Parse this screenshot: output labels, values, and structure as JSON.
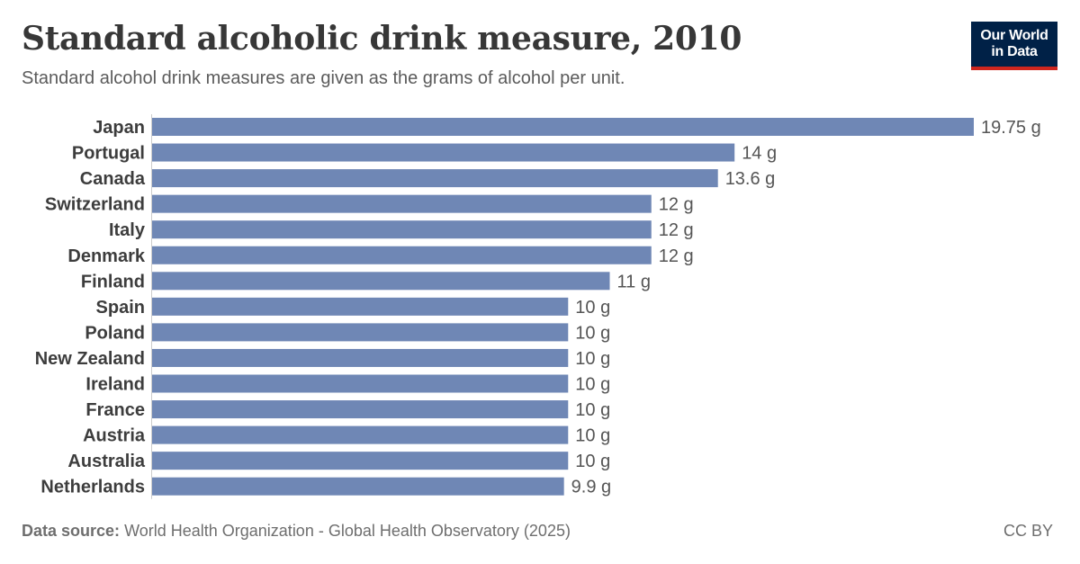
{
  "header": {
    "title": "Standard alcoholic drink measure, 2010",
    "subtitle": "Standard alcohol drink measures are given as the grams of alcohol per unit."
  },
  "logo": {
    "line1": "Our World",
    "line2": "in Data"
  },
  "footer": {
    "source_label": "Data source:",
    "source_text": "World Health Organization - Global Health Observatory (2025)",
    "license": "CC BY"
  },
  "colors": {
    "bar": "#6f87b5",
    "label": "#3d3d3d",
    "value": "#555555",
    "axis": "#cccccc"
  },
  "chart_data": {
    "type": "bar",
    "orientation": "horizontal",
    "unit": "g",
    "categories": [
      "Japan",
      "Portugal",
      "Canada",
      "Switzerland",
      "Italy",
      "Denmark",
      "Finland",
      "Spain",
      "Poland",
      "New Zealand",
      "Ireland",
      "France",
      "Austria",
      "Australia",
      "Netherlands"
    ],
    "values": [
      19.75,
      14,
      13.6,
      12,
      12,
      12,
      11,
      10,
      10,
      10,
      10,
      10,
      10,
      10,
      9.9
    ],
    "value_labels": [
      "19.75 g",
      "14 g",
      "13.6 g",
      "12 g",
      "12 g",
      "12 g",
      "11 g",
      "10 g",
      "10 g",
      "10 g",
      "10 g",
      "10 g",
      "10 g",
      "10 g",
      "9.9 g"
    ],
    "title": "Standard alcoholic drink measure, 2010",
    "xlabel": "",
    "ylabel": "",
    "xlim": [
      0,
      19.75
    ],
    "grid": false
  }
}
